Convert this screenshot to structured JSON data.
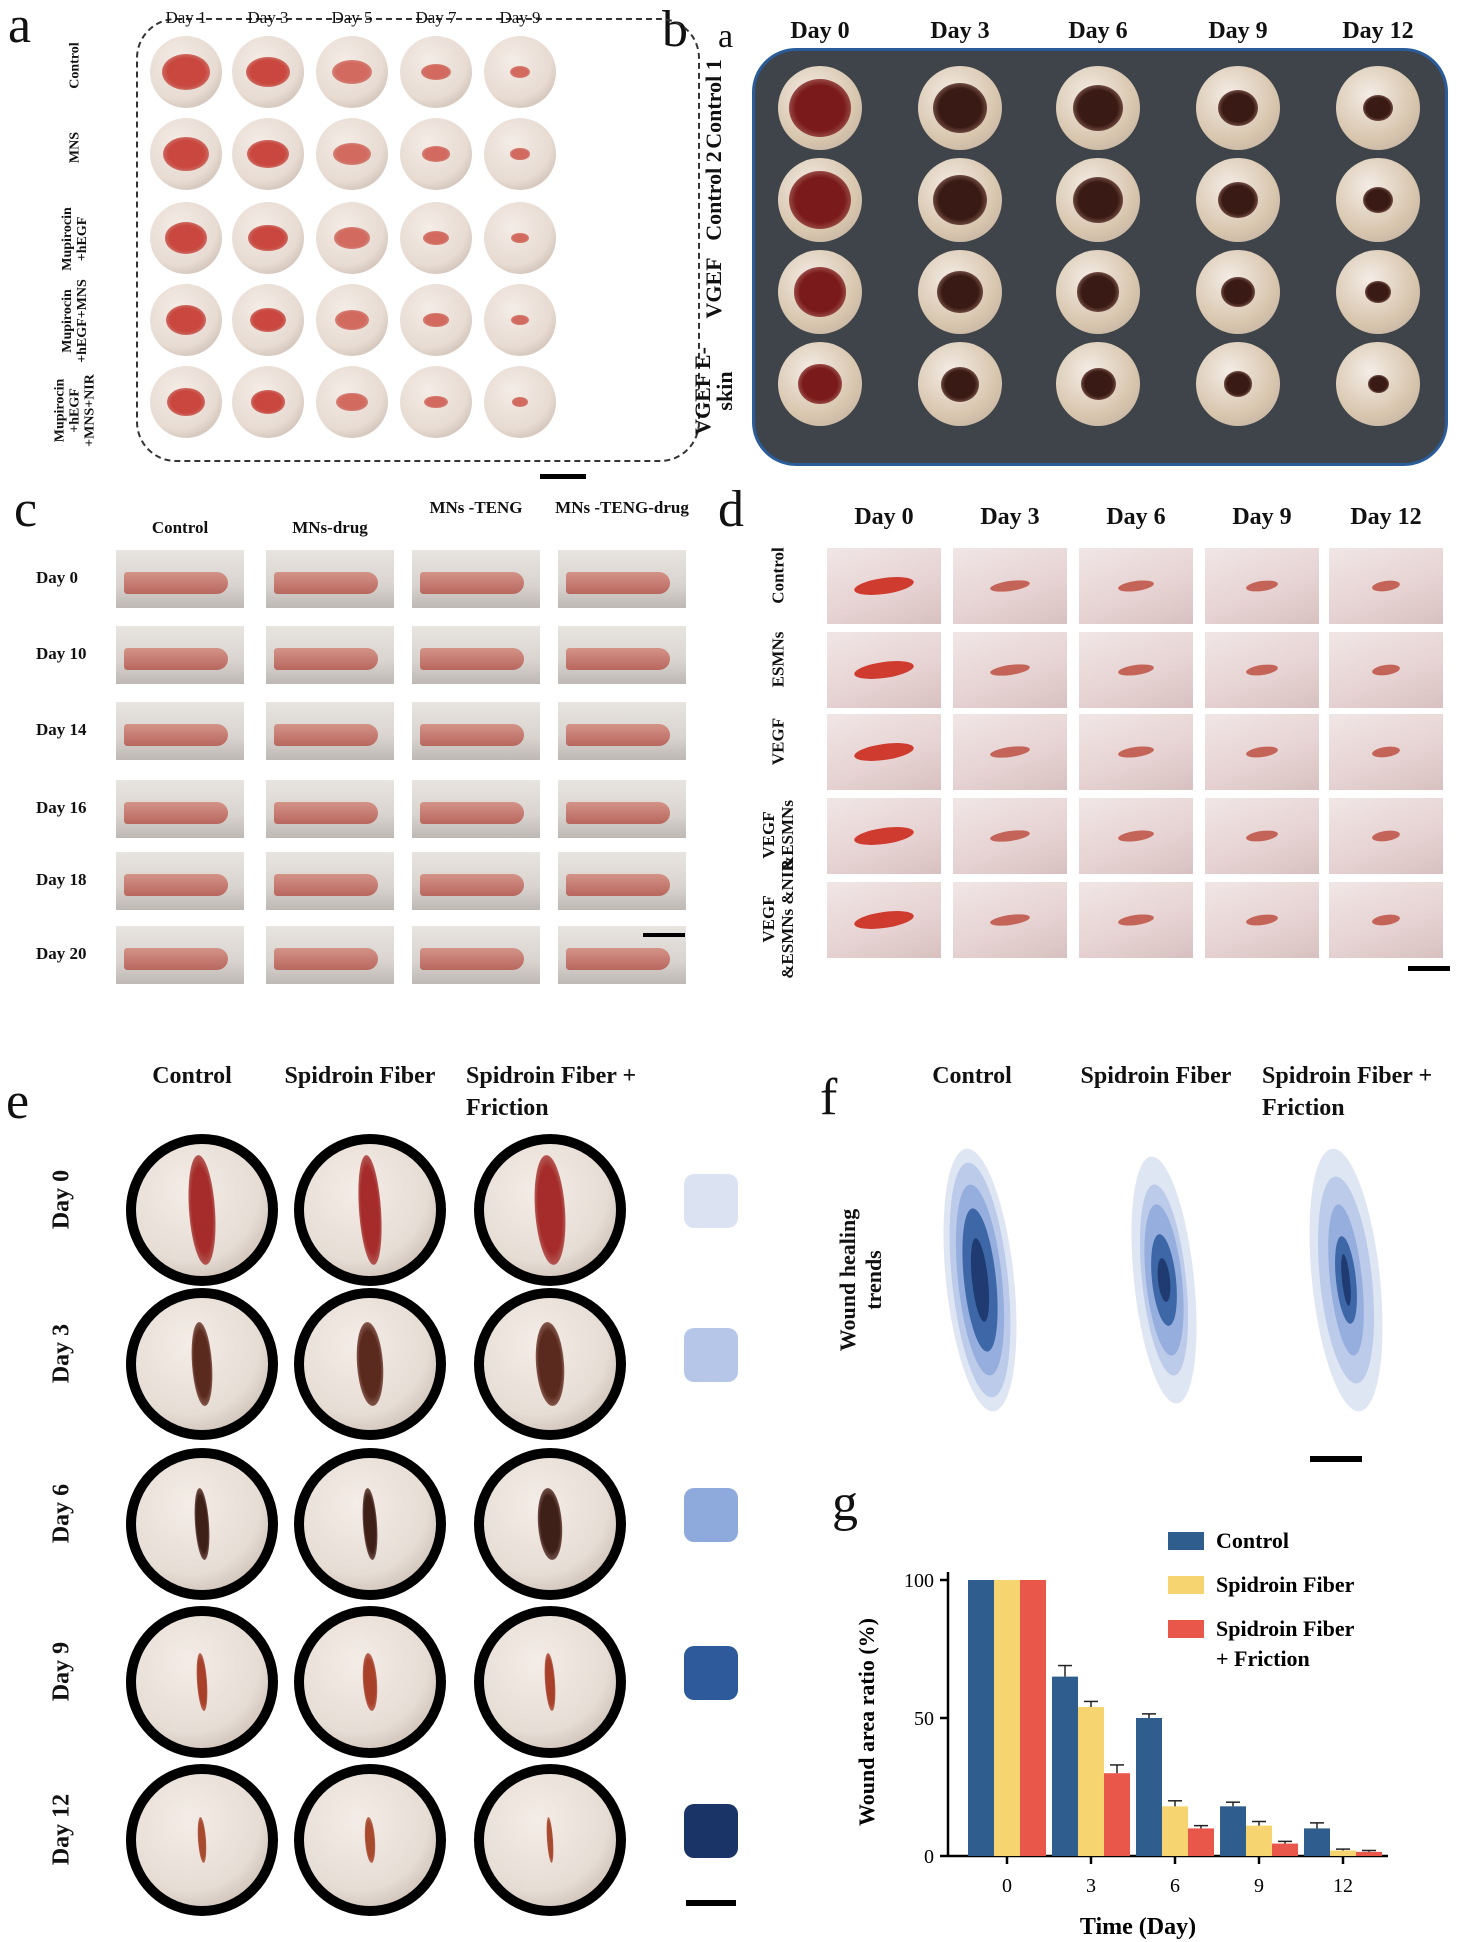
{
  "panel_a": {
    "label": "a",
    "days": [
      "Day 1",
      "Day 3",
      "Day 5",
      "Day 7",
      "Day 9"
    ],
    "groups": [
      "Control",
      "MNS",
      "Mupirocin +hEGF",
      "Mupirocin +hEGF+MNS",
      "Mupirocin +hEGF +MNS+NIR"
    ]
  },
  "panel_b": {
    "label": "b",
    "sublabel": "a",
    "days": [
      "Day 0",
      "Day 3",
      "Day 6",
      "Day 9",
      "Day 12"
    ],
    "groups": [
      "Control 1",
      "Control 2",
      "VGEF",
      "VGEF E-skin"
    ]
  },
  "panel_c": {
    "label": "c",
    "groups": [
      "Control",
      "MNs-drug",
      "MNs -TENG",
      "MNs -TENG-drug"
    ],
    "days": [
      "Day 0",
      "Day 10",
      "Day 14",
      "Day 16",
      "Day 18",
      "Day 20"
    ]
  },
  "panel_d": {
    "label": "d",
    "days": [
      "Day 0",
      "Day 3",
      "Day 6",
      "Day 9",
      "Day 12"
    ],
    "groups": [
      "Control",
      "ESMNs",
      "VEGF",
      "VEGF &ESMNs",
      "VEGF &ESMNs &NIR"
    ]
  },
  "panel_e": {
    "label": "e",
    "groups": [
      "Control",
      "Spidroin Fiber",
      "Spidroin Fiber + Friction"
    ],
    "days": [
      "Day 0",
      "Day 3",
      "Day 6",
      "Day 9",
      "Day 12"
    ],
    "swatch_colors": [
      "#dbe3f2",
      "#b6c6e8",
      "#8ea9dc",
      "#2e5a9c",
      "#1a3468"
    ]
  },
  "panel_f": {
    "label": "f",
    "groups": [
      "Control",
      "Spidroin Fiber",
      "Spidroin Fiber + Friction"
    ],
    "row_label": "Wound healing trends"
  },
  "panel_g": {
    "label": "g"
  },
  "chart_data": {
    "type": "bar",
    "categories": [
      "0",
      "3",
      "6",
      "9",
      "12"
    ],
    "xlabel": "Time (Day)",
    "ylabel": "Wound area ratio (%)",
    "ylim": [
      0,
      100
    ],
    "yticks": [
      0,
      50,
      100
    ],
    "legend_position": "top-right",
    "series": [
      {
        "name": "Control",
        "color": "#2e5d8e",
        "values": [
          100,
          65,
          50,
          18,
          10
        ],
        "errors": [
          0,
          4,
          1.5,
          1.5,
          2
        ]
      },
      {
        "name": "Spidroin Fiber",
        "color": "#f6d571",
        "values": [
          100,
          54,
          18,
          11,
          2
        ],
        "errors": [
          0,
          2,
          2,
          1.5,
          0.5
        ]
      },
      {
        "name": "Spidroin Fiber + Friction",
        "color": "#e9574b",
        "values": [
          100,
          30,
          10,
          4.5,
          1.5
        ],
        "errors": [
          0,
          3,
          1,
          0.8,
          0.5
        ]
      }
    ]
  }
}
